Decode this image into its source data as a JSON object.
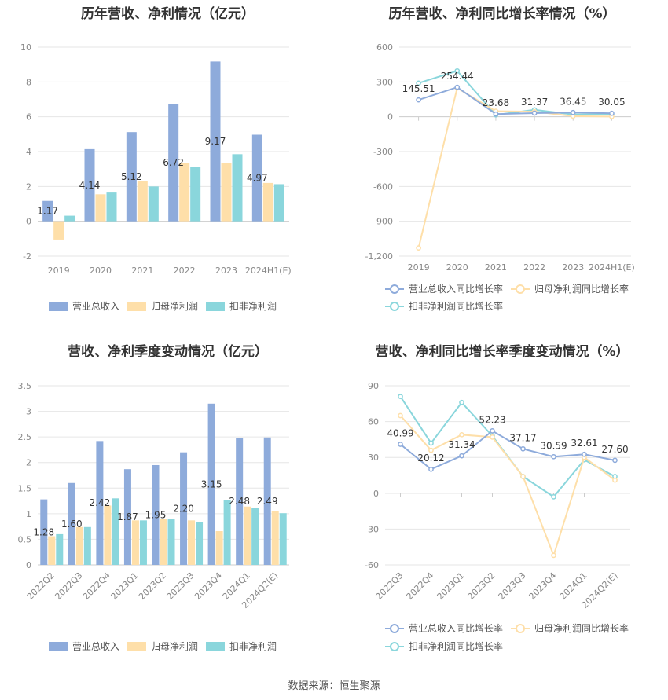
{
  "footer": {
    "source": "数据来源：恒生聚源"
  },
  "colors": {
    "revenue": "#8eabdb",
    "net_profit": "#fedfa9",
    "deducted": "#8ad6dc",
    "revenue_line": "#8eabdb",
    "net_line": "#fedfa9",
    "deducted_line": "#8ad6dc"
  },
  "chart_data": [
    {
      "type": "bar",
      "title": "历年营收、净利情况（亿元）",
      "categories": [
        "2019",
        "2020",
        "2021",
        "2022",
        "2023",
        "2024H1(E)"
      ],
      "series": [
        {
          "name": "营业总收入",
          "values": [
            1.17,
            4.14,
            5.12,
            6.72,
            9.17,
            4.97
          ]
        },
        {
          "name": "归母净利润",
          "values": [
            -1.05,
            1.55,
            2.32,
            3.33,
            3.35,
            2.2
          ]
        },
        {
          "name": "扣非净利润",
          "values": [
            0.32,
            1.65,
            2.0,
            3.12,
            3.85,
            2.13
          ]
        }
      ],
      "data_labels": [
        "1.17",
        "4.14",
        "5.12",
        "6.72",
        "9.17",
        "4.97"
      ],
      "yticks": [
        "-2",
        "0",
        "2",
        "4",
        "6",
        "8",
        "10"
      ],
      "ylim": [
        -2,
        10
      ],
      "grid": true,
      "legend_position": "bottom"
    },
    {
      "type": "line",
      "title": "历年营收、净利同比增长率情况（%）",
      "categories": [
        "2019",
        "2020",
        "2021",
        "2022",
        "2023",
        "2024H1(E)"
      ],
      "series": [
        {
          "name": "营业总收入同比增长率",
          "values": [
            145.51,
            254.44,
            23.68,
            31.37,
            36.45,
            30.05
          ]
        },
        {
          "name": "归母净利润同比增长率",
          "values": [
            -1130,
            248,
            48,
            44,
            5,
            2
          ]
        },
        {
          "name": "扣非净利润同比增长率",
          "values": [
            290,
            395,
            16,
            60,
            20,
            22
          ]
        }
      ],
      "data_labels": [
        "145.51",
        "254.44",
        "23.68",
        "31.37",
        "36.45",
        "30.05"
      ],
      "yticks": [
        "-1,200",
        "-900",
        "-600",
        "-300",
        "0",
        "300",
        "600"
      ],
      "ylim": [
        -1200,
        600
      ],
      "grid": true,
      "legend_position": "bottom"
    },
    {
      "type": "bar",
      "title": "营收、净利季度变动情况（亿元）",
      "categories": [
        "2022Q2",
        "2022Q3",
        "2022Q4",
        "2023Q1",
        "2023Q2",
        "2023Q3",
        "2023Q4",
        "2024Q1",
        "2024Q2(E)"
      ],
      "series": [
        {
          "name": "营业总收入",
          "values": [
            1.28,
            1.6,
            2.42,
            1.87,
            1.95,
            2.2,
            3.15,
            2.48,
            2.49
          ]
        },
        {
          "name": "归母净利润",
          "values": [
            0.56,
            0.74,
            1.16,
            0.87,
            0.9,
            0.87,
            0.66,
            1.14,
            1.05
          ]
        },
        {
          "name": "扣非净利润",
          "values": [
            0.6,
            0.74,
            1.3,
            0.87,
            0.89,
            0.84,
            1.27,
            1.11,
            1.01
          ]
        }
      ],
      "data_labels": [
        "1.28",
        "1.60",
        "2.42",
        "1.87",
        "1.95",
        "2.20",
        "3.15",
        "2.48",
        "2.49"
      ],
      "yticks": [
        "0",
        "0.5",
        "1",
        "1.5",
        "2",
        "2.5",
        "3",
        "3.5"
      ],
      "ylim": [
        0,
        3.5
      ],
      "grid": true,
      "legend_position": "bottom"
    },
    {
      "type": "line",
      "title": "营收、净利同比增长率季度变动情况（%）",
      "categories": [
        "2022Q3",
        "2022Q4",
        "2023Q1",
        "2023Q2",
        "2023Q3",
        "2023Q4",
        "2024Q1",
        "2024Q2(E)"
      ],
      "series": [
        {
          "name": "营业总收入同比增长率",
          "values": [
            40.99,
            20.12,
            31.34,
            52.23,
            37.17,
            30.59,
            32.61,
            27.6
          ]
        },
        {
          "name": "归母净利润同比增长率",
          "values": [
            65,
            36,
            49,
            47,
            14,
            -52,
            30,
            11
          ]
        },
        {
          "name": "扣非净利润同比增长率",
          "values": [
            81,
            42,
            76,
            48,
            14,
            -3,
            28,
            14
          ]
        }
      ],
      "data_labels": [
        "40.99",
        "20.12",
        "31.34",
        "52.23",
        "37.17",
        "30.59",
        "32.61",
        "27.60"
      ],
      "yticks": [
        "-60",
        "-30",
        "0",
        "30",
        "60",
        "90"
      ],
      "ylim": [
        -60,
        90
      ],
      "grid": true,
      "legend_position": "bottom"
    }
  ]
}
